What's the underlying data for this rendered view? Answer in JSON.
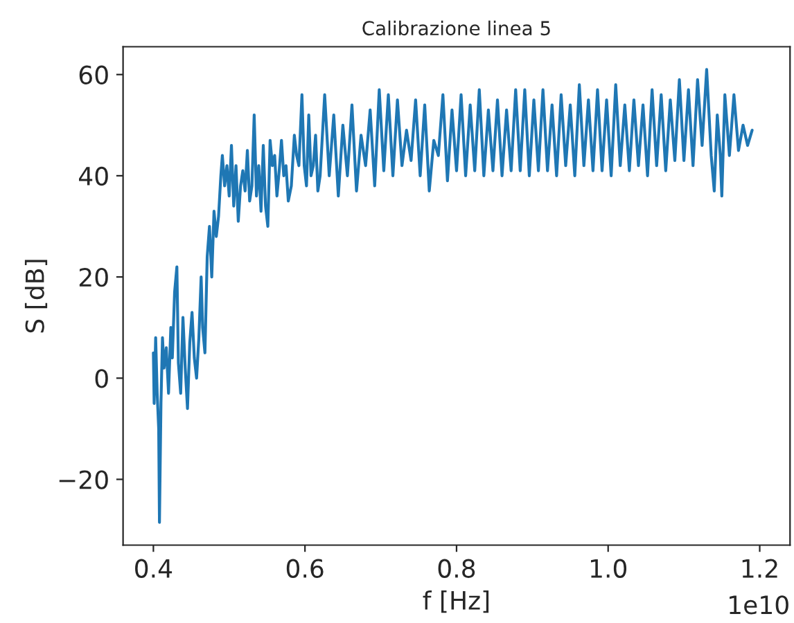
{
  "chart_data": {
    "type": "line",
    "title": "Calibrazione linea 5",
    "xlabel": "f [Hz]",
    "ylabel": "S [dB]",
    "annotations": [
      "1e10"
    ],
    "series": [
      {
        "color": "#1f77b4",
        "x": [
          0.4,
          0.401,
          0.403,
          0.405,
          0.407,
          0.408,
          0.41,
          0.412,
          0.414,
          0.417,
          0.42,
          0.423,
          0.425,
          0.428,
          0.431,
          0.433,
          0.436,
          0.439,
          0.442,
          0.445,
          0.448,
          0.451,
          0.454,
          0.457,
          0.46,
          0.463,
          0.465,
          0.468,
          0.471,
          0.474,
          0.477,
          0.48,
          0.483,
          0.486,
          0.489,
          0.491,
          0.494,
          0.497,
          0.5,
          0.503,
          0.506,
          0.509,
          0.512,
          0.515,
          0.518,
          0.521,
          0.524,
          0.527,
          0.53,
          0.533,
          0.536,
          0.539,
          0.542,
          0.545,
          0.548,
          0.551,
          0.554,
          0.557,
          0.56,
          0.563,
          0.566,
          0.569,
          0.572,
          0.575,
          0.578,
          0.582,
          0.586,
          0.589,
          0.592,
          0.596,
          0.599,
          0.602,
          0.605,
          0.608,
          0.611,
          0.614,
          0.617,
          0.62,
          0.626,
          0.632,
          0.638,
          0.644,
          0.65,
          0.656,
          0.662,
          0.668,
          0.674,
          0.68,
          0.686,
          0.692,
          0.698,
          0.704,
          0.71,
          0.716,
          0.722,
          0.728,
          0.734,
          0.74,
          0.746,
          0.752,
          0.758,
          0.764,
          0.77,
          0.776,
          0.782,
          0.788,
          0.794,
          0.8,
          0.806,
          0.812,
          0.818,
          0.824,
          0.83,
          0.836,
          0.842,
          0.848,
          0.854,
          0.86,
          0.866,
          0.872,
          0.878,
          0.884,
          0.89,
          0.896,
          0.902,
          0.908,
          0.914,
          0.92,
          0.926,
          0.932,
          0.938,
          0.944,
          0.95,
          0.956,
          0.962,
          0.968,
          0.974,
          0.98,
          0.986,
          0.992,
          0.998,
          1.004,
          1.01,
          1.016,
          1.022,
          1.028,
          1.034,
          1.04,
          1.046,
          1.052,
          1.058,
          1.064,
          1.07,
          1.076,
          1.082,
          1.088,
          1.094,
          1.1,
          1.106,
          1.112,
          1.118,
          1.124,
          1.13,
          1.136,
          1.14,
          1.144,
          1.148,
          1.15,
          1.154,
          1.16,
          1.166,
          1.172,
          1.178,
          1.184,
          1.19
        ],
        "values": [
          5,
          -5,
          8,
          -3,
          -10,
          -28.5,
          -5,
          8,
          2,
          6,
          -3,
          10,
          4,
          17,
          22,
          3,
          -3,
          12,
          2,
          -6,
          7,
          13,
          4,
          0,
          8,
          20,
          10,
          5,
          24,
          30,
          20,
          33,
          28,
          32,
          40,
          44,
          38,
          42,
          36,
          46,
          34,
          42,
          31,
          38,
          41,
          37,
          45,
          35,
          38,
          52,
          36,
          42,
          33,
          46,
          34,
          30,
          47,
          42,
          44,
          36,
          41,
          47,
          40,
          42,
          35,
          38,
          48,
          44,
          42,
          56,
          42,
          38,
          52,
          40,
          42,
          48,
          37,
          40,
          56,
          40,
          52,
          36,
          50,
          40,
          54,
          37,
          48,
          42,
          53,
          38,
          57,
          41,
          56,
          40,
          55,
          42,
          49,
          43,
          55,
          40,
          54,
          37,
          47,
          44,
          56,
          39,
          53,
          41,
          56,
          40,
          54,
          41,
          57,
          40,
          53,
          41,
          55,
          40,
          53,
          41,
          57,
          41,
          57,
          40,
          55,
          41,
          57,
          41,
          54,
          40,
          56,
          42,
          54,
          40,
          58,
          42,
          55,
          41,
          57,
          41,
          55,
          40,
          58,
          42,
          54,
          41,
          55,
          42,
          54,
          40,
          57,
          42,
          56,
          41,
          55,
          43,
          59,
          43,
          57,
          42,
          59,
          46,
          61,
          44,
          37,
          52,
          44,
          36,
          56,
          44,
          56,
          45,
          50,
          46,
          49
        ]
      }
    ],
    "xlim": [
      0.36,
      1.24
    ],
    "xticks": [
      0.4,
      0.6,
      0.8,
      {
        "value": 1.0,
        "label": "1.0"
      },
      1.2
    ],
    "ylim": [
      -33,
      65.5
    ],
    "yticks": [
      {
        "value": -20,
        "label": "−20"
      },
      0,
      20,
      40,
      60
    ],
    "grid": false,
    "legend": false
  }
}
